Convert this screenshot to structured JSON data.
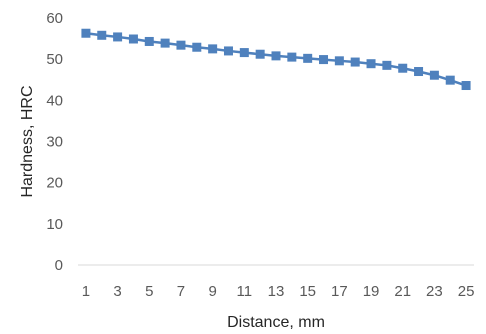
{
  "chart_data": {
    "type": "line",
    "title": "",
    "xlabel": "Distance, mm",
    "ylabel": "Hardness, HRC",
    "x": [
      1,
      2,
      3,
      4,
      5,
      6,
      7,
      8,
      9,
      10,
      11,
      12,
      13,
      14,
      15,
      16,
      17,
      18,
      19,
      20,
      21,
      22,
      23,
      24,
      25
    ],
    "x_tick_labels": [
      "1",
      "3",
      "5",
      "7",
      "9",
      "11",
      "13",
      "15",
      "17",
      "19",
      "21",
      "23",
      "25"
    ],
    "y_ticks": [
      0,
      10,
      20,
      30,
      40,
      50,
      60
    ],
    "ylim": [
      0,
      60
    ],
    "grid": false,
    "legend": "none",
    "series": [
      {
        "values": [
          56.3,
          55.8,
          55.4,
          54.9,
          54.3,
          53.9,
          53.4,
          52.9,
          52.5,
          52.0,
          51.6,
          51.2,
          50.8,
          50.5,
          50.2,
          49.9,
          49.6,
          49.3,
          48.9,
          48.5,
          47.8,
          47.0,
          46.1,
          44.9,
          43.6
        ],
        "color": "#4f81bd",
        "marker": "square"
      }
    ]
  }
}
